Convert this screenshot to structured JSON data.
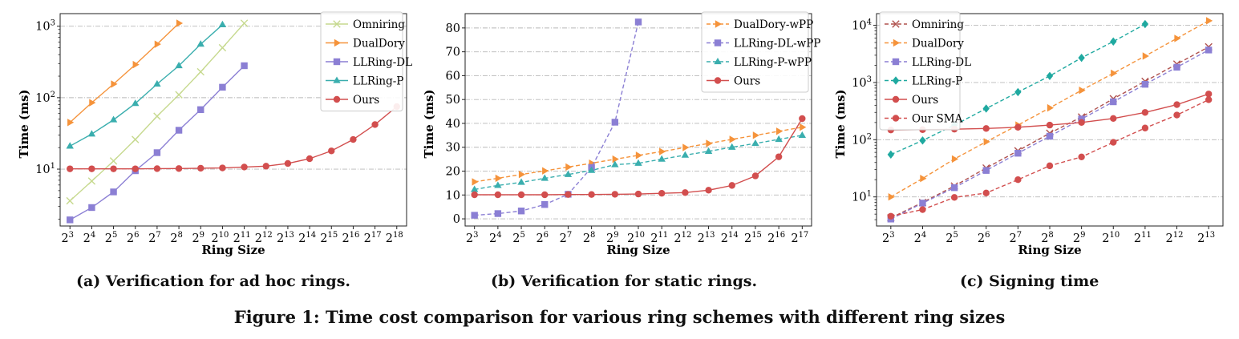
{
  "chart_data": [
    {
      "type": "line",
      "caption": "(a) Verification for ad hoc rings.",
      "xlabel": "Ring Size",
      "ylabel": "Time (ms)",
      "yscale": "log",
      "ylim": [
        1.6,
        1500
      ],
      "xlim": [
        2.55,
        18.45
      ],
      "x_exponents": [
        3,
        4,
        5,
        6,
        7,
        8,
        9,
        10,
        11,
        12,
        13,
        14,
        15,
        16,
        17,
        18
      ],
      "x_tick_base": "2",
      "y_tick_values": [
        10,
        100,
        1000
      ],
      "y_tick_base": "10",
      "y_tick_exponents": [
        "1",
        "2",
        "3"
      ],
      "grid": "horizontal dash-dot",
      "legend": "top-right",
      "series": [
        {
          "name": "Omniring",
          "color": "#c6d98e",
          "marker": "x",
          "dash": "solid",
          "x": [
            3,
            4,
            5,
            6,
            7,
            8,
            9,
            10,
            11
          ],
          "y": [
            3.6,
            6.8,
            13,
            26,
            55,
            110,
            230,
            500,
            1100
          ]
        },
        {
          "name": "DualDory",
          "color": "#f5933b",
          "marker": "triangle-right",
          "dash": "solid",
          "x": [
            3,
            4,
            5,
            6,
            7,
            8
          ],
          "y": [
            45,
            85,
            155,
            290,
            560,
            1100
          ]
        },
        {
          "name": "LLRing-DL",
          "color": "#8b7fd4",
          "marker": "square",
          "dash": "solid",
          "x": [
            3,
            4,
            5,
            6,
            7,
            8,
            9,
            10,
            11
          ],
          "y": [
            1.95,
            2.9,
            4.8,
            9.5,
            17,
            35,
            68,
            140,
            280
          ]
        },
        {
          "name": "LLRing-P",
          "color": "#3aaeae",
          "marker": "triangle-up",
          "dash": "solid",
          "x": [
            3,
            4,
            5,
            6,
            7,
            8,
            9,
            10
          ],
          "y": [
            21,
            31,
            49,
            83,
            155,
            280,
            560,
            1050
          ]
        },
        {
          "name": "Ours",
          "color": "#d24e4e",
          "marker": "circle",
          "dash": "solid",
          "x": [
            3,
            4,
            5,
            6,
            7,
            8,
            9,
            10,
            11,
            12,
            13,
            14,
            15,
            16,
            17,
            18
          ],
          "y": [
            10.1,
            10.1,
            10.1,
            10.1,
            10.15,
            10.2,
            10.3,
            10.4,
            10.7,
            11,
            12,
            14,
            18,
            26,
            42,
            75
          ]
        }
      ]
    },
    {
      "type": "line",
      "caption": "(b) Verification for static rings.",
      "xlabel": "Ring Size",
      "ylabel": "Time (ms)",
      "yscale": "linear",
      "ylim": [
        -3,
        86
      ],
      "xlim": [
        2.6,
        17.4
      ],
      "x_exponents": [
        3,
        4,
        5,
        6,
        7,
        8,
        9,
        10,
        11,
        12,
        13,
        14,
        15,
        16,
        17
      ],
      "x_tick_base": "2",
      "y_tick_values": [
        0,
        10,
        20,
        30,
        40,
        50,
        60,
        70,
        80
      ],
      "y_tick_labels": [
        "0",
        "10",
        "20",
        "30",
        "40",
        "50",
        "60",
        "70",
        "80"
      ],
      "grid": "horizontal dash-dot",
      "legend": "top-right",
      "series": [
        {
          "name": "DualDory-wPP",
          "color": "#f5933b",
          "marker": "triangle-right",
          "dash": "dashed",
          "x": [
            3,
            4,
            5,
            6,
            7,
            8,
            9,
            10,
            11,
            12,
            13,
            14,
            15,
            16,
            17
          ],
          "y": [
            15.5,
            17,
            18.6,
            20.1,
            21.7,
            23.3,
            25,
            26.6,
            28.2,
            29.9,
            31.6,
            33.3,
            35,
            36.7,
            38.4
          ]
        },
        {
          "name": "LLRing-DL-wPP",
          "color": "#8b7fd4",
          "marker": "square",
          "dash": "dashed",
          "x": [
            3,
            4,
            5,
            6,
            7,
            8,
            9,
            10
          ],
          "y": [
            1.5,
            2.2,
            3.3,
            6,
            10.3,
            21.5,
            40.5,
            82.5
          ]
        },
        {
          "name": "LLRing-P-wPP",
          "color": "#3aaeae",
          "marker": "triangle-up",
          "dash": "dashed",
          "x": [
            3,
            4,
            5,
            6,
            7,
            8,
            9,
            10,
            11,
            12,
            13,
            14,
            15,
            16,
            17
          ],
          "y": [
            12.3,
            14,
            15.3,
            17,
            18.6,
            20.3,
            22.7,
            23.3,
            25,
            26.7,
            28.3,
            30,
            31.6,
            33.3,
            35
          ]
        },
        {
          "name": "Ours",
          "color": "#d24e4e",
          "marker": "circle",
          "dash": "solid",
          "x": [
            3,
            4,
            5,
            6,
            7,
            8,
            9,
            10,
            11,
            12,
            13,
            14,
            15,
            16,
            17
          ],
          "y": [
            10.1,
            10.1,
            10.1,
            10.1,
            10.2,
            10.2,
            10.3,
            10.4,
            10.7,
            11,
            12,
            14,
            18,
            26,
            42
          ]
        }
      ]
    },
    {
      "type": "line",
      "caption": "(c) Signing time",
      "xlabel": "Ring Size",
      "ylabel": "Time (ms)",
      "yscale": "log",
      "ylim": [
        3.1,
        16000
      ],
      "xlim": [
        2.55,
        13.45
      ],
      "x_exponents": [
        3,
        4,
        5,
        6,
        7,
        8,
        9,
        10,
        11,
        12,
        13
      ],
      "x_tick_base": "2",
      "y_tick_values": [
        10,
        100,
        1000,
        10000
      ],
      "y_tick_base": "10",
      "y_tick_exponents": [
        "1",
        "2",
        "3",
        "4"
      ],
      "grid": "horizontal dash-dot",
      "legend": "top-left",
      "series": [
        {
          "name": "Omniring",
          "color": "#b0524e",
          "marker": "x",
          "dash": "dashed",
          "x": [
            3,
            4,
            5,
            6,
            7,
            8,
            9,
            10,
            11,
            12,
            13
          ],
          "y": [
            4.3,
            8,
            15.5,
            32,
            64,
            130,
            250,
            520,
            1050,
            2100,
            4200
          ]
        },
        {
          "name": "DualDory",
          "color": "#f5933b",
          "marker": "triangle-right",
          "dash": "dashed",
          "x": [
            3,
            4,
            5,
            6,
            7,
            8,
            9,
            10,
            11,
            12,
            13
          ],
          "y": [
            10,
            21,
            46,
            92,
            180,
            360,
            730,
            1450,
            2900,
            5900,
            12000
          ]
        },
        {
          "name": "LLRing-DL",
          "color": "#8b7fd4",
          "marker": "square",
          "dash": "dashed",
          "x": [
            3,
            4,
            5,
            6,
            7,
            8,
            9,
            10,
            11,
            12,
            13
          ],
          "y": [
            4.1,
            7.8,
            14.5,
            29,
            58,
            115,
            230,
            460,
            930,
            1850,
            3700
          ]
        },
        {
          "name": "LLRing-P",
          "color": "#1fa9a0",
          "marker": "diamond",
          "dash": "dashed",
          "x": [
            3,
            4,
            5,
            6,
            7,
            8,
            9,
            10,
            11
          ],
          "y": [
            55,
            97,
            180,
            350,
            680,
            1300,
            2700,
            5200,
            10500
          ]
        },
        {
          "name": "Ours",
          "color": "#d24e4e",
          "marker": "circle",
          "dash": "solid",
          "x": [
            3,
            4,
            5,
            6,
            7,
            8,
            9,
            10,
            11,
            12,
            13
          ],
          "y": [
            148,
            150,
            153,
            157,
            165,
            180,
            200,
            235,
            300,
            410,
            630
          ]
        },
        {
          "name": "Our SMA",
          "color": "#d24e4e",
          "marker": "circle",
          "dash": "dashed",
          "x": [
            3,
            4,
            5,
            6,
            7,
            8,
            9,
            10,
            11,
            12,
            13
          ],
          "y": [
            4.6,
            6,
            9.8,
            11.7,
            20,
            35,
            50,
            90,
            160,
            270,
            500
          ]
        }
      ]
    }
  ],
  "figure_caption": "Figure 1: Time cost comparison for various ring schemes with different ring sizes"
}
